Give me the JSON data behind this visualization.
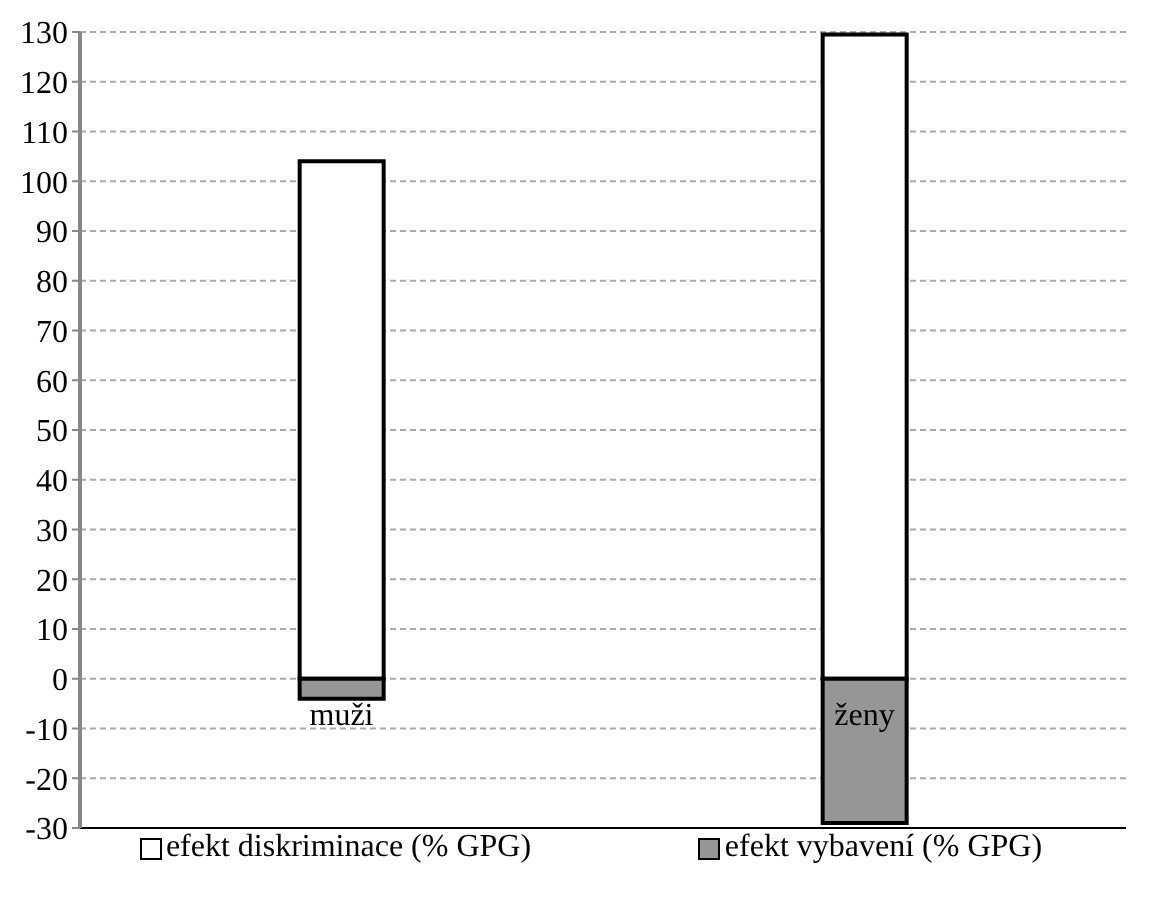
{
  "chart_data": {
    "type": "bar",
    "stacked": true,
    "categories": [
      "muži",
      "ženy"
    ],
    "series": [
      {
        "name": "efekt diskriminace (% GPG)",
        "color": "#ffffff",
        "values": [
          104,
          129.5
        ]
      },
      {
        "name": "efekt vybavení (% GPG)",
        "color": "#969696",
        "values": [
          -4,
          -29
        ]
      }
    ],
    "ylim": [
      -30,
      130
    ],
    "yticks": [
      -30,
      -20,
      -10,
      0,
      10,
      20,
      30,
      40,
      50,
      60,
      70,
      80,
      90,
      100,
      110,
      120,
      130
    ],
    "grid": "y",
    "legend": "bottom"
  }
}
